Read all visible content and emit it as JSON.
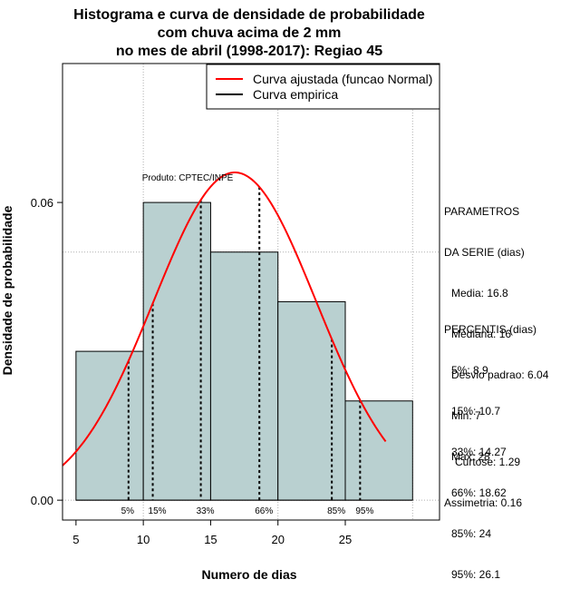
{
  "chart_data": {
    "type": "histogram",
    "title_lines": [
      "Histograma e curva de densidade de probabilidade",
      "com chuva acima de 2 mm",
      "no mes de abril (1998-2017): Regiao 45"
    ],
    "xlabel": "Numero de dias",
    "ylabel": "Densidade de probabilidade",
    "xlim": [
      4,
      32
    ],
    "ylim": [
      -0.004,
      0.088
    ],
    "xticks": [
      5,
      10,
      15,
      20,
      25
    ],
    "yticks": [
      0.0,
      0.06
    ],
    "ytick_labels": [
      "0.00",
      "0.06"
    ],
    "grid_x": [
      10,
      20,
      30
    ],
    "grid_y": [
      0.05
    ],
    "bins": [
      {
        "x0": 5,
        "x1": 10,
        "density": 0.03
      },
      {
        "x0": 10,
        "x1": 15,
        "density": 0.06
      },
      {
        "x0": 15,
        "x1": 20,
        "density": 0.05
      },
      {
        "x0": 20,
        "x1": 25,
        "density": 0.04
      },
      {
        "x0": 25,
        "x1": 30,
        "density": 0.02
      }
    ],
    "normal_fit": {
      "mean": 16.8,
      "sd": 6.04,
      "x_range": [
        4,
        28
      ]
    },
    "percentile_lines": [
      {
        "label": "5%",
        "x": 8.9
      },
      {
        "label": "15%",
        "x": 10.7
      },
      {
        "label": "33%",
        "x": 14.27
      },
      {
        "label": "66%",
        "x": 18.62
      },
      {
        "label": "85%",
        "x": 24
      },
      {
        "label": "95%",
        "x": 26.1
      }
    ],
    "legend": [
      {
        "label": "Curva ajustada (funcao Normal)",
        "color": "#ff0000"
      },
      {
        "label": "Curva empirica",
        "color": "#000000"
      }
    ],
    "annotation": "Produto: CPTEC/INPE",
    "colors": {
      "bar_fill": "#b9d0d0",
      "curve": "#ff0000",
      "grid": "#b0b0b0"
    }
  },
  "stats_panel": {
    "parametros_title": [
      "PARAMETROS",
      "DA SERIE (dias)"
    ],
    "parametros": [
      "Media: 16.8",
      "Mediana: 16",
      "Desvio padrao: 6.04",
      "Min: 7",
      "Max: 28"
    ],
    "percentis_title": "PERCENTIS (dias)",
    "percentis": [
      "5%: 8.9",
      "15%: 10.7",
      "33%: 14.27",
      "66%: 18.62",
      "85%: 24",
      "95%: 26.1"
    ],
    "curtose": "Curtose: 1.29",
    "assimetria": "Assimetria: 0.16"
  }
}
